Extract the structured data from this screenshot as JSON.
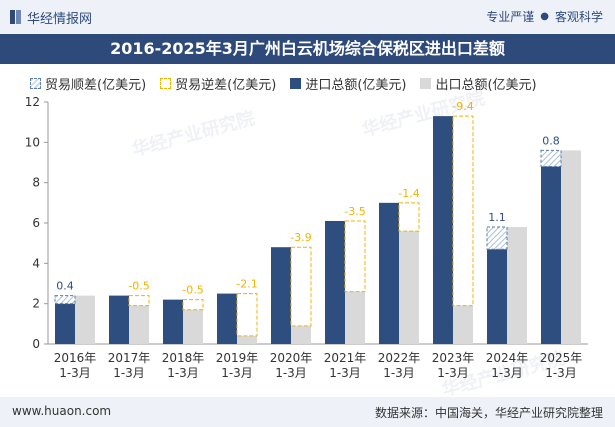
{
  "header": {
    "brand": "华经情报网",
    "tag1": "专业严谨",
    "tag2": "客观科学"
  },
  "title": "2016-2025年3月广州白云机场综合保税区进出口差额",
  "legend": {
    "surplus": "贸易顺差(亿美元)",
    "deficit": "贸易逆差(亿美元)",
    "import": "进口总额(亿美元)",
    "export": "出口总额(亿美元)"
  },
  "footer": {
    "url": "www.huaon.com",
    "source": "数据来源：中国海关，华经产业研究院整理"
  },
  "watermark": "华经产业研究院",
  "colors": {
    "import": "#2f4e80",
    "export": "#d9d9d9",
    "surplus_label": "#2f4e80",
    "deficit_label": "#f0b400",
    "deficit_border": "#f0b400",
    "surplus_border": "#5b7fa8"
  },
  "chart_data": {
    "type": "bar",
    "categories": [
      "2016年\n1-3月",
      "2017年\n1-3月",
      "2018年\n1-3月",
      "2019年\n1-3月",
      "2020年\n1-3月",
      "2021年\n1-3月",
      "2022年\n1-3月",
      "2023年\n1-3月",
      "2024年\n1-3月",
      "2025年\n1-3月"
    ],
    "series": [
      {
        "name": "进口总额(亿美元)",
        "values": [
          2.0,
          2.4,
          2.2,
          2.5,
          4.8,
          6.1,
          7.0,
          11.3,
          4.7,
          8.8
        ]
      },
      {
        "name": "出口总额(亿美元)",
        "values": [
          2.4,
          1.9,
          1.7,
          0.4,
          0.9,
          2.6,
          5.6,
          1.9,
          5.8,
          9.6
        ]
      }
    ],
    "balance": [
      0.4,
      -0.5,
      -0.5,
      -2.1,
      -3.9,
      -3.5,
      -1.4,
      -9.4,
      1.1,
      0.8
    ],
    "balance_labels": [
      "0.4",
      "-0.5",
      "-0.5",
      "-2.1",
      "-3.9",
      "-3.5",
      "-1.4",
      "-9.4",
      "1.1",
      "0.8"
    ],
    "ylim": [
      0,
      12
    ],
    "yticks": [
      0,
      2,
      4,
      6,
      8,
      10,
      12
    ],
    "grid": false,
    "legend_position": "top"
  }
}
